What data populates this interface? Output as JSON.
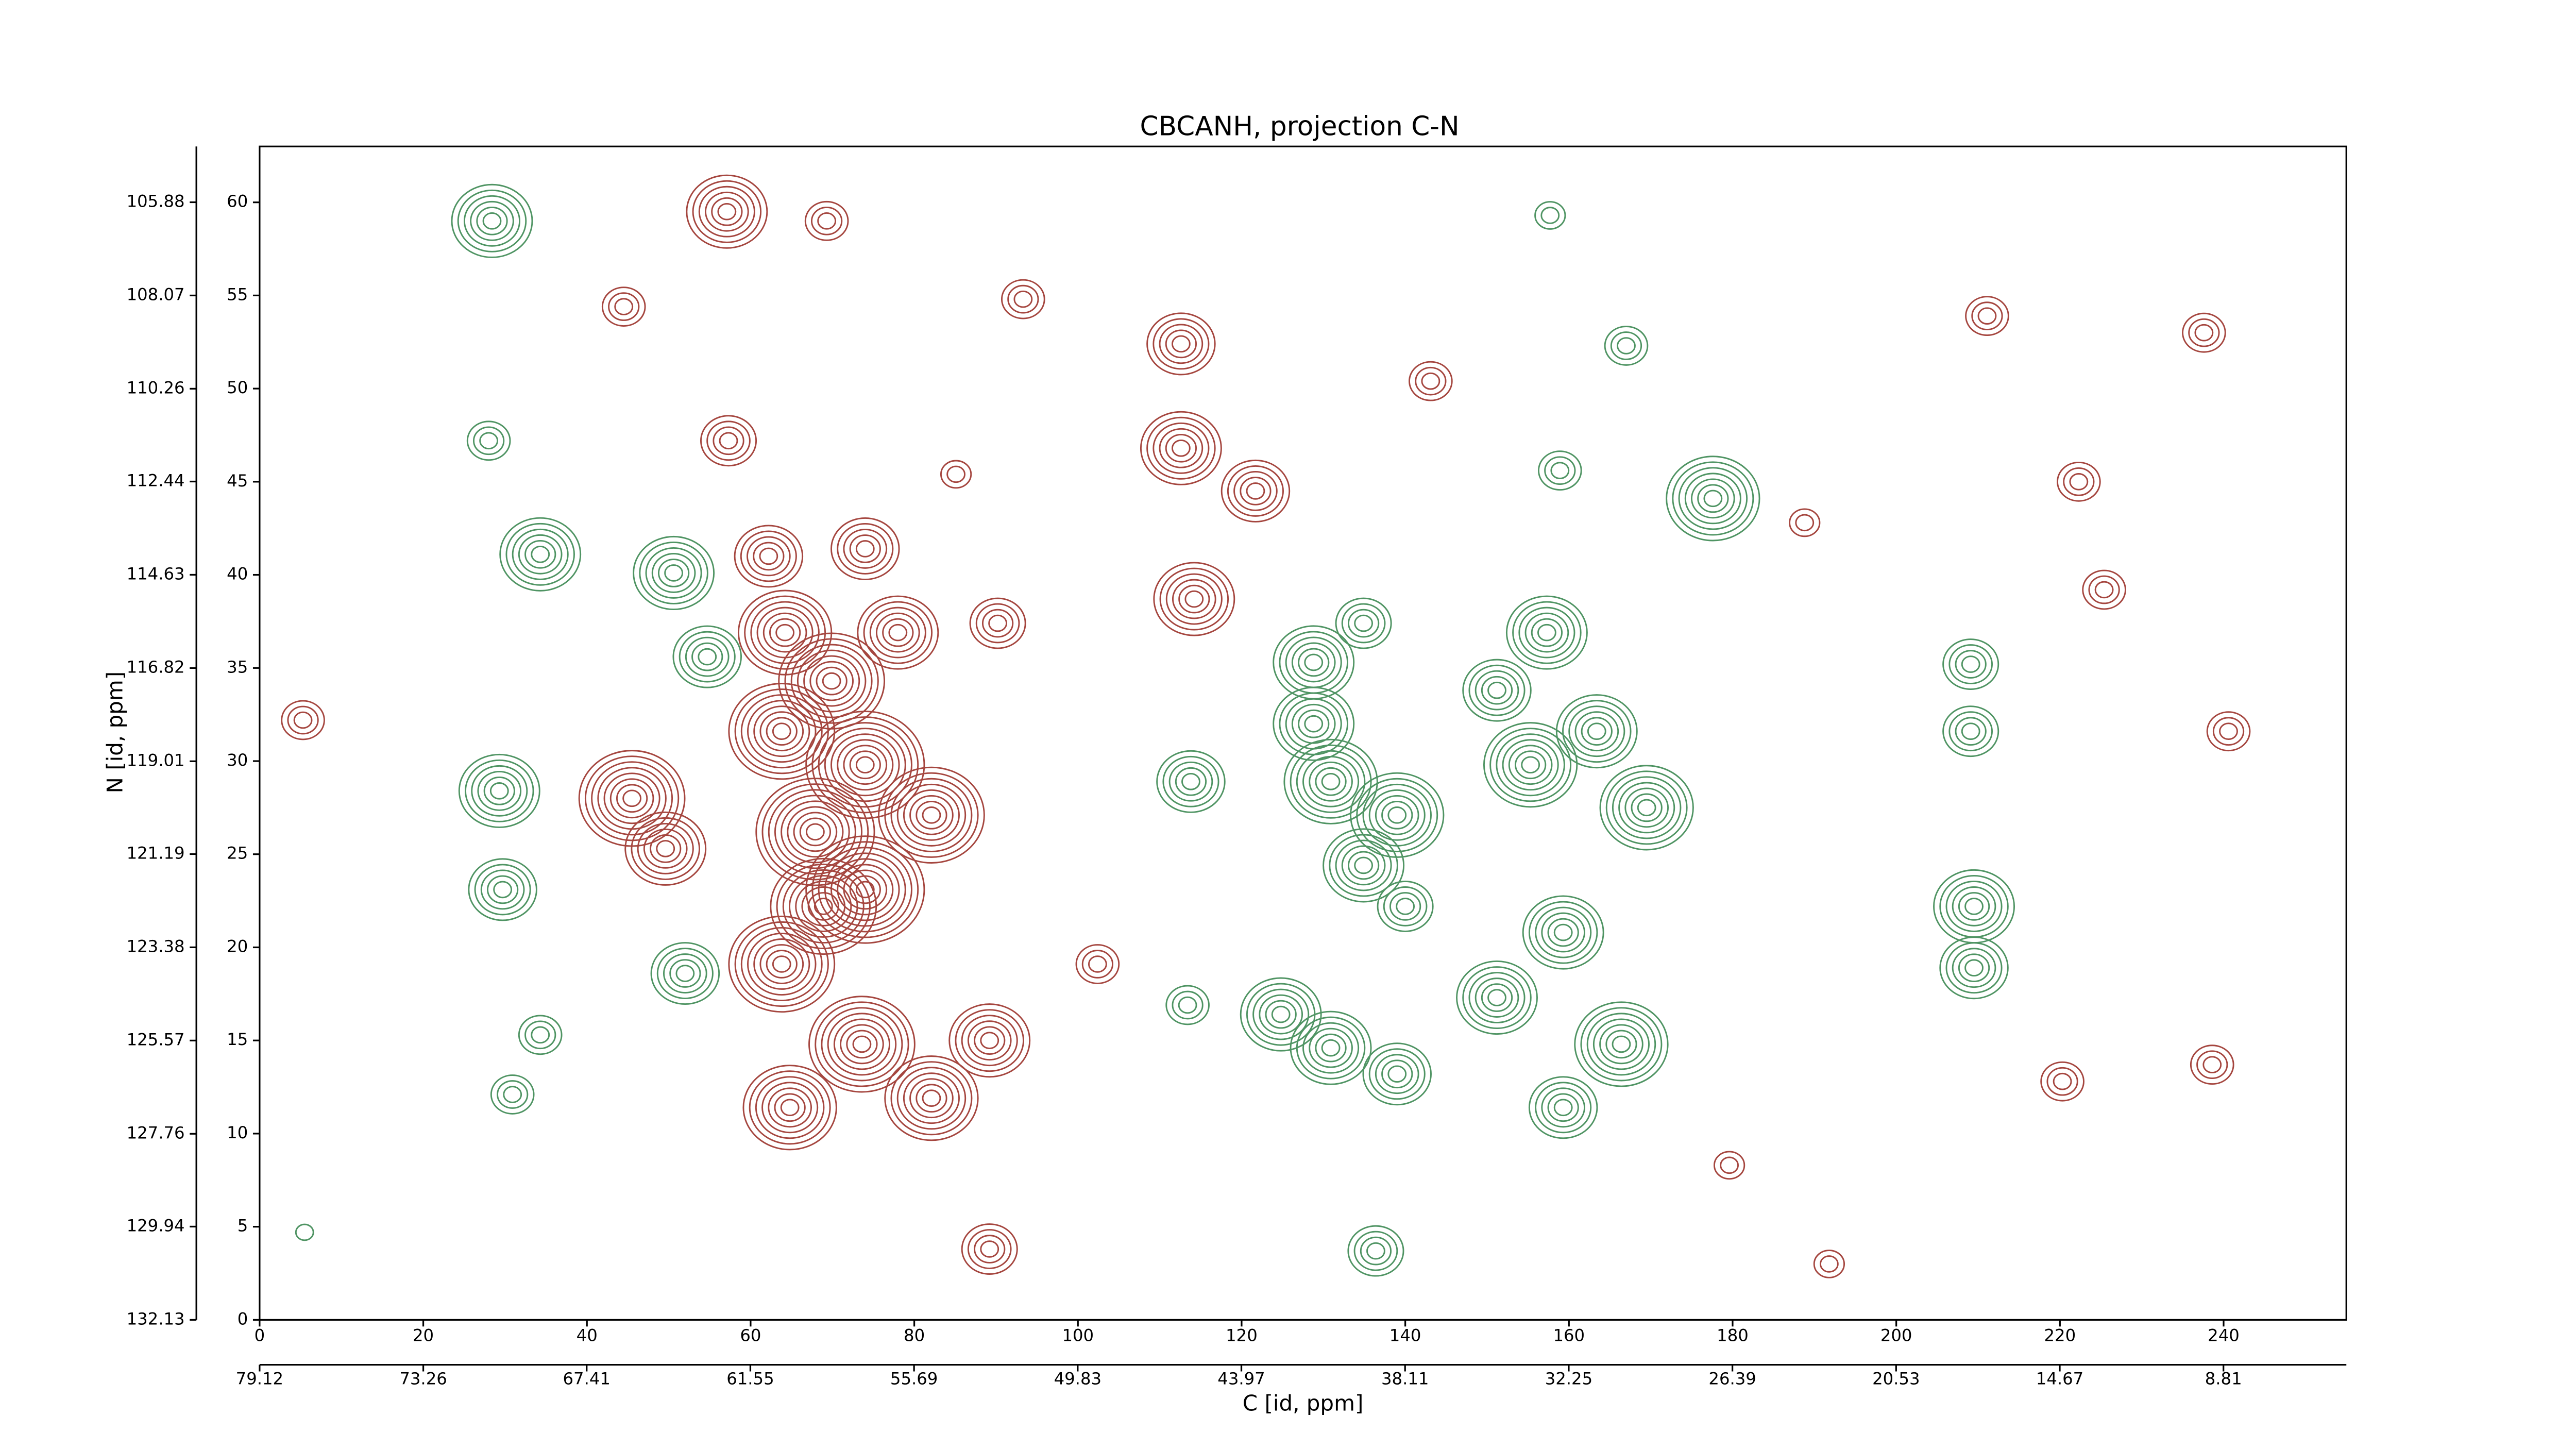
{
  "chart_data": {
    "type": "contour",
    "title": "CBCANH, projection C-N",
    "xlabel": "C [id, ppm]",
    "ylabel": "N [id, ppm]",
    "xlim": [
      0,
      255
    ],
    "ylim": [
      0,
      63
    ],
    "xticks": [
      0,
      20,
      40,
      60,
      80,
      100,
      120,
      140,
      160,
      180,
      200,
      220,
      240
    ],
    "yticks": [
      0,
      5,
      10,
      15,
      20,
      25,
      30,
      35,
      40,
      45,
      50,
      55,
      60
    ],
    "x2lim": [
      79.12,
      4.41
    ],
    "x2ticks": [
      79.12,
      73.26,
      67.41,
      61.55,
      55.69,
      49.83,
      43.97,
      38.11,
      32.25,
      26.39,
      20.53,
      14.67,
      8.81
    ],
    "y2lim": [
      132.13,
      104.57
    ],
    "y2ticks": [
      132.13,
      129.94,
      127.76,
      125.57,
      123.38,
      121.19,
      119.01,
      116.82,
      114.63,
      112.44,
      110.26,
      108.07,
      105.88
    ],
    "series": [
      {
        "color": "#4f9463",
        "x": [
          28.4,
          34.3,
          50.6,
          54.7,
          29.3,
          29.7,
          52.0,
          34.3,
          30.9,
          113.8,
          113.4,
          128.8,
          134.9,
          128.8,
          130.9,
          139.0,
          134.9,
          140.0,
          124.8,
          130.9,
          139.0,
          157.3,
          151.2,
          163.4,
          155.3,
          169.5,
          159.3,
          151.2,
          166.4,
          159.3,
          177.6,
          209.1,
          209.1,
          209.5,
          209.5,
          136.4,
          157.7,
          167.0,
          158.9,
          28.0,
          5.5
        ],
        "y": [
          59.0,
          41.1,
          40.1,
          35.6,
          28.4,
          23.1,
          18.6,
          15.3,
          12.1,
          28.9,
          16.9,
          35.3,
          37.4,
          32.0,
          28.9,
          27.1,
          24.4,
          22.2,
          16.4,
          14.6,
          13.2,
          36.9,
          33.8,
          31.6,
          29.8,
          27.5,
          20.8,
          17.3,
          14.8,
          11.4,
          44.1,
          35.2,
          31.6,
          22.2,
          18.9,
          3.7,
          59.3,
          52.3,
          45.6,
          47.2,
          4.7
        ],
        "levels": [
          6,
          6,
          6,
          5,
          6,
          5,
          5,
          3,
          3,
          5,
          3,
          6,
          4,
          6,
          7,
          7,
          6,
          4,
          6,
          6,
          5,
          6,
          5,
          6,
          7,
          7,
          6,
          6,
          7,
          5,
          7,
          4,
          4,
          6,
          5,
          4,
          2,
          3,
          3,
          3,
          1
        ]
      },
      {
        "color": "#a5463f",
        "x": [
          57.1,
          69.3,
          112.6,
          112.6,
          121.7,
          114.2,
          62.2,
          64.2,
          74.0,
          78.0,
          69.9,
          63.8,
          74.0,
          67.9,
          82.1,
          74.0,
          45.5,
          49.6,
          63.8,
          73.6,
          64.8,
          82.1,
          89.2,
          68.9,
          5.3,
          90.2,
          102.4,
          188.8,
          222.3,
          237.6,
          225.4,
          240.6,
          220.3,
          238.6,
          211.1,
          179.6,
          191.8,
          89.2,
          143.1,
          93.3,
          85.1,
          57.3,
          44.5
        ],
        "y": [
          59.5,
          59.0,
          52.4,
          46.8,
          44.5,
          38.7,
          41.0,
          36.9,
          41.4,
          36.9,
          34.3,
          31.6,
          29.8,
          26.2,
          27.1,
          23.1,
          28.0,
          25.3,
          19.1,
          14.8,
          11.4,
          11.9,
          15.0,
          22.2,
          32.2,
          37.4,
          19.1,
          42.8,
          45.0,
          53.0,
          39.2,
          31.6,
          12.8,
          13.7,
          53.9,
          8.3,
          3.0,
          3.8,
          50.4,
          54.8,
          45.4,
          47.2,
          54.4
        ],
        "levels": [
          6,
          3,
          5,
          6,
          5,
          6,
          5,
          7,
          5,
          6,
          8,
          8,
          9,
          9,
          8,
          9,
          8,
          6,
          8,
          8,
          7,
          7,
          6,
          8,
          3,
          4,
          3,
          2,
          3,
          3,
          3,
          3,
          3,
          3,
          3,
          2,
          2,
          4,
          3,
          3,
          2,
          4,
          3
        ]
      }
    ]
  }
}
